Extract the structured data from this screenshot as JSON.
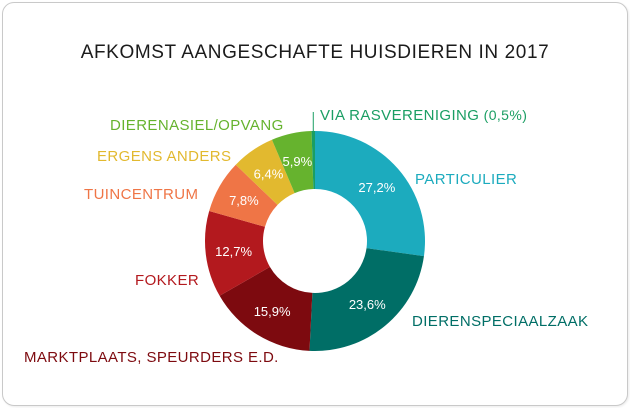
{
  "chart_data": {
    "type": "pie",
    "title": "AFKOMST AANGESCHAFTE HUISDIEREN IN 2017",
    "unit": "%",
    "legend": "none",
    "categories": [
      "PARTICULIER",
      "DIERENSPECIAALZAAK",
      "MARKTPLAATS, SPEURDERS E.D.",
      "FOKKER",
      "TUINCENTRUM",
      "ERGENS ANDERS",
      "DIERENASIEL/OPVANG",
      "VIA RASVERENIGING"
    ],
    "values": [
      27.2,
      23.6,
      15.9,
      12.7,
      7.8,
      6.4,
      5.9,
      0.5
    ],
    "value_labels": [
      "27,2%",
      "23,6%",
      "15,9%",
      "12,7%",
      "7,8%",
      "6,4%",
      "5,9%",
      "(0,5%)"
    ],
    "colors": [
      "#1cabbe",
      "#006e66",
      "#7d0a0f",
      "#b3191e",
      "#ef7546",
      "#e2b92f",
      "#66b32e",
      "#1a9e63"
    ],
    "label_colors": [
      "#1cabbe",
      "#006e66",
      "#7d0a0f",
      "#b3191e",
      "#ef7546",
      "#e2b92f",
      "#66b32e",
      "#1a9e63"
    ]
  }
}
